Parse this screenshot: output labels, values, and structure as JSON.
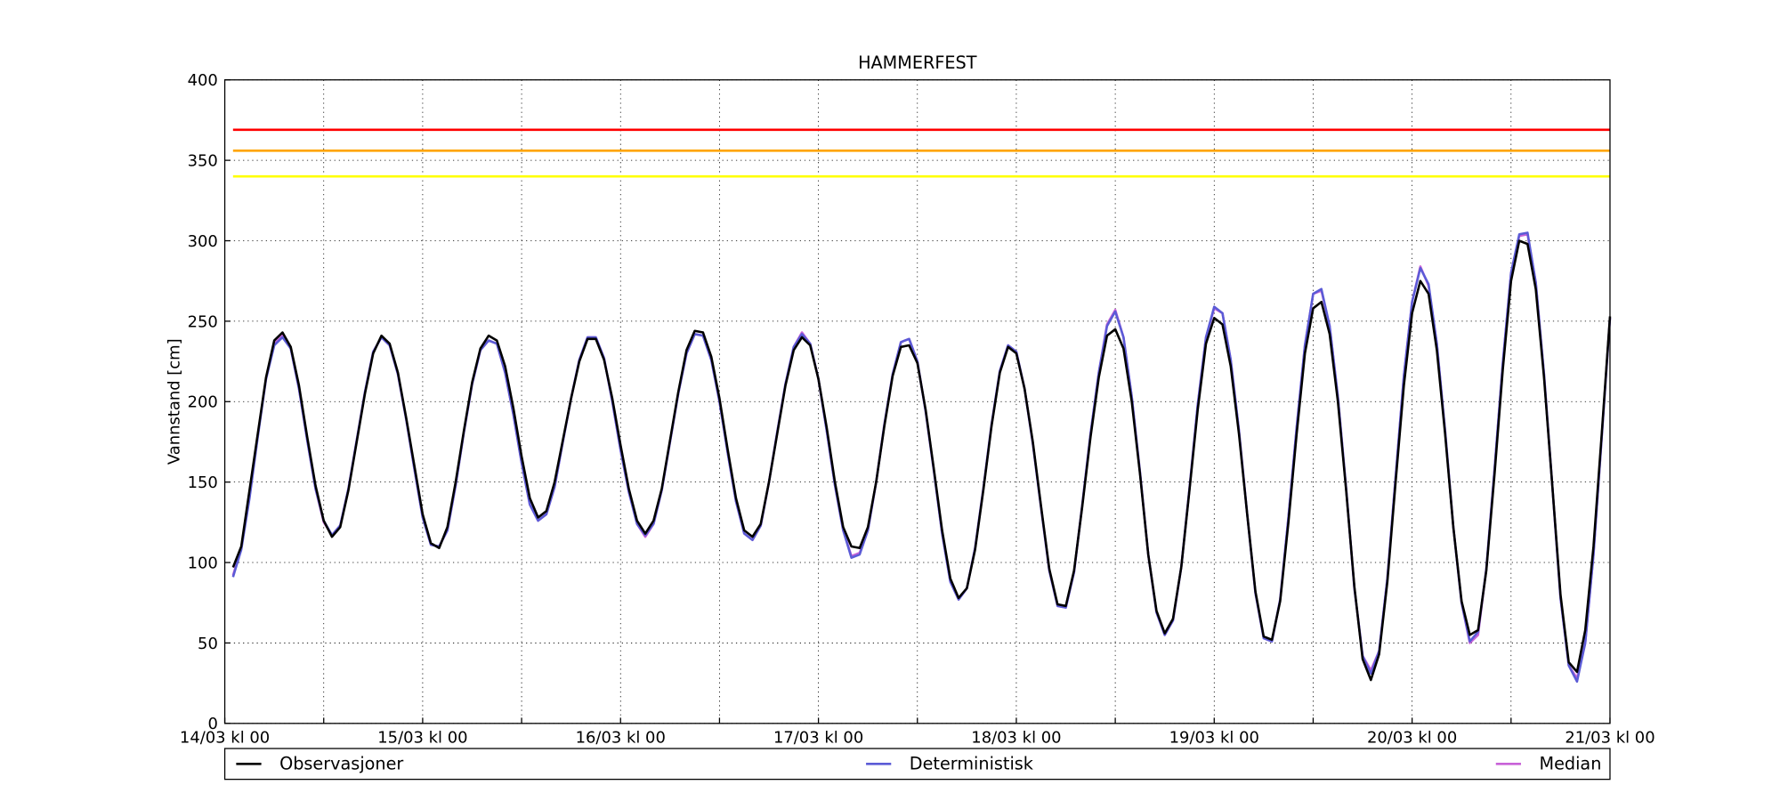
{
  "chart_data": {
    "type": "line",
    "title": "HAMMERFEST",
    "ylabel": "Vannstand [cm]",
    "x": [
      1,
      2,
      3,
      4,
      5,
      6,
      7,
      8,
      9,
      10,
      11,
      12,
      13,
      14,
      15,
      16,
      17,
      18,
      19,
      20,
      21,
      22,
      23,
      24,
      25,
      26,
      27,
      28,
      29,
      30,
      31,
      32,
      33,
      34,
      35,
      36,
      37,
      38,
      39,
      40,
      41,
      42,
      43,
      44,
      45,
      46,
      47,
      48,
      49,
      50,
      51,
      52,
      53,
      54,
      55,
      56,
      57,
      58,
      59,
      60,
      61,
      62,
      63,
      64,
      65,
      66,
      67,
      68,
      69,
      70,
      71,
      72,
      73,
      74,
      75,
      76,
      77,
      78,
      79,
      80,
      81,
      82,
      83,
      84,
      85,
      86,
      87,
      88,
      89,
      90,
      91,
      92,
      93,
      94,
      95,
      96,
      97,
      98,
      99,
      100,
      101,
      102,
      103,
      104,
      105,
      106,
      107,
      108,
      109,
      110,
      111,
      112,
      113,
      114,
      115,
      116,
      117,
      118,
      119,
      120,
      121,
      122,
      123,
      124,
      125,
      126,
      127,
      128,
      129,
      130,
      131,
      132,
      133,
      134,
      135,
      136,
      137,
      138,
      139,
      140,
      141,
      142,
      143,
      144,
      145,
      146,
      147,
      148,
      149,
      150,
      151,
      152,
      153,
      154,
      155,
      156,
      157,
      158,
      159,
      160,
      161,
      162,
      163,
      164,
      165,
      166,
      167,
      168
    ],
    "xlim": [
      0,
      168
    ],
    "xticks": [
      {
        "value": 0,
        "label": "14/03 kl 00"
      },
      {
        "value": 24,
        "label": "15/03 kl 00"
      },
      {
        "value": 48,
        "label": "16/03 kl 00"
      },
      {
        "value": 72,
        "label": "17/03 kl 00"
      },
      {
        "value": 96,
        "label": "18/03 kl 00"
      },
      {
        "value": 120,
        "label": "19/03 kl 00"
      },
      {
        "value": 144,
        "label": "20/03 kl 00"
      },
      {
        "value": 168,
        "label": "21/03 kl 00"
      }
    ],
    "xminor_ticks": [
      12,
      36,
      60,
      84,
      108,
      132,
      156
    ],
    "ylim": [
      0,
      400
    ],
    "yticks": [
      0,
      50,
      100,
      150,
      200,
      250,
      300,
      350,
      400
    ],
    "grid": true,
    "legend": "below",
    "thresholds": [
      {
        "value": 369,
        "color": "#ff0000"
      },
      {
        "value": 356,
        "color": "#ffa500"
      },
      {
        "value": 340,
        "color": "#ffff00"
      }
    ],
    "series": [
      {
        "name": "Observasjoner",
        "color": "#000000",
        "values": [
          97,
          110,
          145,
          180,
          215,
          238,
          243,
          234,
          210,
          178,
          148,
          126,
          116,
          122,
          145,
          175,
          205,
          230,
          241,
          236,
          218,
          190,
          160,
          130,
          112,
          109,
          122,
          150,
          182,
          212,
          233,
          241,
          238,
          222,
          196,
          166,
          140,
          128,
          132,
          150,
          176,
          202,
          225,
          239,
          239,
          226,
          202,
          173,
          146,
          126,
          118,
          126,
          146,
          176,
          206,
          232,
          244,
          243,
          228,
          202,
          170,
          140,
          120,
          116,
          124,
          150,
          180,
          210,
          232,
          240,
          235,
          214,
          184,
          150,
          122,
          110,
          109,
          122,
          150,
          185,
          216,
          234,
          235,
          224,
          195,
          158,
          120,
          90,
          78,
          84,
          108,
          145,
          185,
          218,
          234,
          230,
          208,
          175,
          135,
          96,
          74,
          73,
          95,
          135,
          178,
          215,
          241,
          245,
          233,
          200,
          155,
          105,
          70,
          56,
          65,
          97,
          145,
          195,
          236,
          252,
          248,
          222,
          180,
          130,
          82,
          54,
          52,
          76,
          125,
          180,
          230,
          258,
          262,
          242,
          200,
          145,
          85,
          40,
          27,
          43,
          88,
          150,
          210,
          255,
          275,
          267,
          232,
          180,
          122,
          76,
          55,
          58,
          95,
          155,
          220,
          275,
          300,
          298,
          270,
          215,
          148,
          80,
          38,
          32,
          58,
          110,
          180,
          253
        ]
      },
      {
        "name": "Deterministisk",
        "color": "#5b5bd6",
        "values": [
          91,
          108,
          140,
          178,
          214,
          235,
          240,
          233,
          208,
          176,
          146,
          126,
          117,
          123,
          146,
          176,
          206,
          231,
          240,
          235,
          217,
          189,
          158,
          128,
          111,
          110,
          120,
          148,
          181,
          211,
          232,
          238,
          236,
          218,
          192,
          162,
          136,
          126,
          130,
          147,
          175,
          202,
          226,
          240,
          240,
          227,
          200,
          170,
          144,
          124,
          117,
          124,
          145,
          175,
          205,
          230,
          242,
          241,
          226,
          200,
          168,
          138,
          118,
          114,
          123,
          150,
          181,
          211,
          234,
          242,
          236,
          214,
          182,
          148,
          120,
          103,
          105,
          120,
          150,
          186,
          217,
          237,
          239,
          225,
          194,
          157,
          118,
          88,
          77,
          84,
          109,
          146,
          186,
          219,
          235,
          231,
          208,
          174,
          134,
          95,
          73,
          72,
          94,
          136,
          180,
          218,
          247,
          256,
          240,
          203,
          156,
          105,
          69,
          55,
          64,
          97,
          146,
          198,
          240,
          259,
          255,
          226,
          182,
          130,
          81,
          53,
          51,
          77,
          128,
          184,
          235,
          267,
          270,
          247,
          203,
          146,
          84,
          42,
          31,
          45,
          90,
          153,
          216,
          262,
          283,
          273,
          236,
          182,
          122,
          75,
          51,
          57,
          96,
          158,
          224,
          280,
          304,
          305,
          274,
          217,
          148,
          78,
          36,
          26,
          50,
          105,
          178,
          252
        ]
      },
      {
        "name": "Median",
        "color": "#c862d8",
        "values": [
          92,
          109,
          141,
          179,
          214,
          236,
          241,
          233,
          208,
          176,
          146,
          125,
          117,
          123,
          146,
          176,
          206,
          231,
          240,
          235,
          217,
          189,
          158,
          128,
          111,
          110,
          120,
          148,
          181,
          211,
          232,
          238,
          236,
          218,
          192,
          162,
          136,
          126,
          130,
          147,
          175,
          202,
          226,
          240,
          240,
          227,
          200,
          170,
          144,
          124,
          116,
          124,
          145,
          175,
          205,
          230,
          242,
          241,
          226,
          200,
          168,
          138,
          118,
          114,
          123,
          150,
          181,
          211,
          234,
          243,
          236,
          214,
          182,
          148,
          120,
          104,
          106,
          120,
          150,
          186,
          217,
          237,
          239,
          225,
          194,
          157,
          118,
          88,
          77,
          84,
          109,
          146,
          186,
          219,
          235,
          231,
          208,
          174,
          134,
          95,
          73,
          72,
          94,
          136,
          180,
          218,
          248,
          257,
          240,
          203,
          156,
          105,
          69,
          55,
          64,
          97,
          146,
          198,
          240,
          258,
          255,
          226,
          182,
          130,
          81,
          53,
          51,
          77,
          128,
          184,
          235,
          267,
          269,
          247,
          203,
          146,
          84,
          42,
          33,
          45,
          90,
          153,
          216,
          262,
          284,
          272,
          236,
          182,
          122,
          75,
          50,
          55,
          96,
          158,
          224,
          280,
          303,
          304,
          274,
          217,
          148,
          78,
          36,
          28,
          50,
          105,
          178,
          252
        ]
      }
    ]
  }
}
